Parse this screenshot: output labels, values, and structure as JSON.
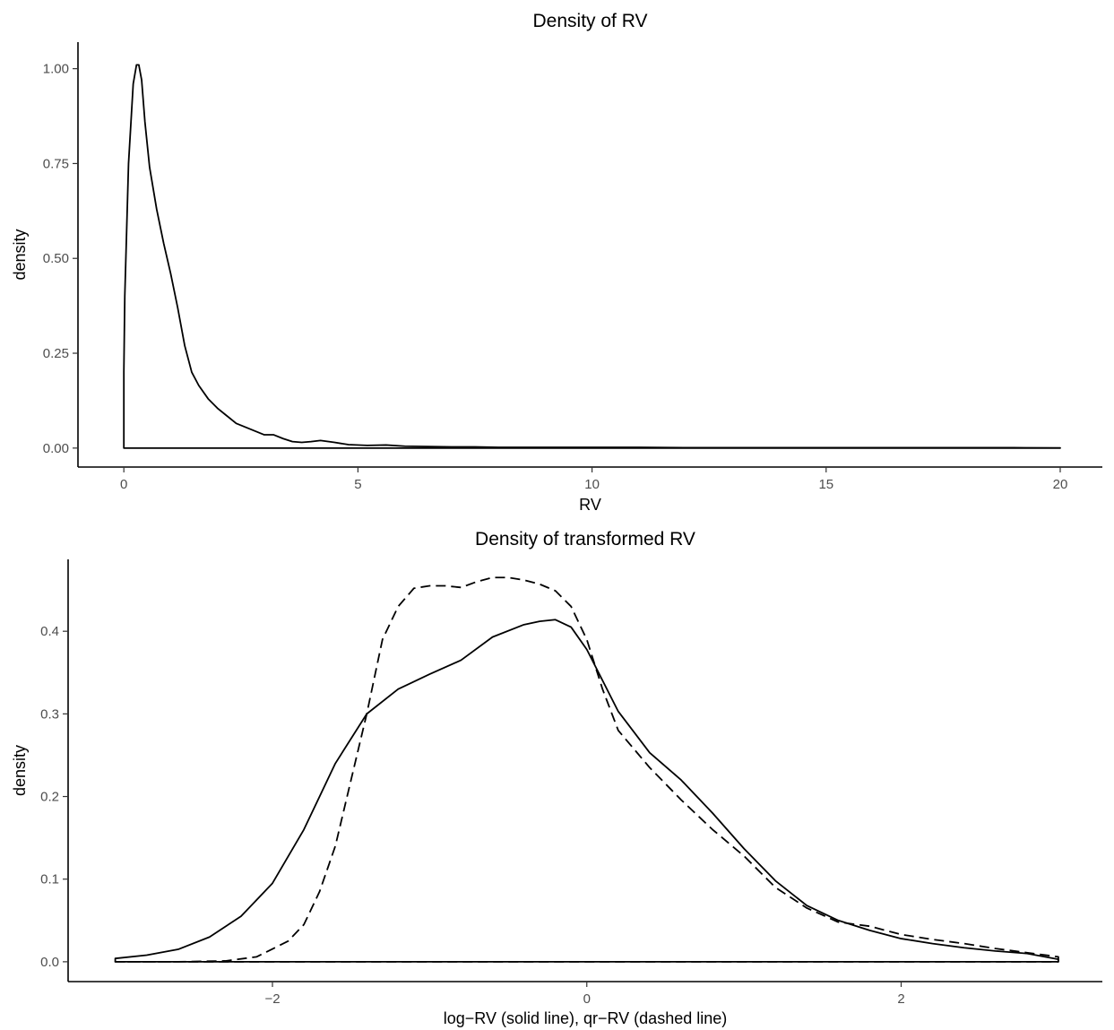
{
  "chart_data": [
    {
      "type": "line",
      "title": "Density of RV",
      "xlabel": "RV",
      "ylabel": "density",
      "xlim": [
        -0.98,
        20.9
      ],
      "ylim": [
        -0.05,
        1.07
      ],
      "xticks": [
        0,
        5,
        10,
        15,
        20
      ],
      "xtick_labels": [
        "0",
        "5",
        "10",
        "15",
        "20"
      ],
      "yticks": [
        0,
        0.25,
        0.5,
        0.75,
        1.0
      ],
      "ytick_labels": [
        "0.00",
        "0.25",
        "0.50",
        "0.75",
        "1.00"
      ],
      "grid": false,
      "series": [
        {
          "style": "solid",
          "closed": true,
          "x": [
            0,
            0.02,
            0.1,
            0.2,
            0.27,
            0.32,
            0.38,
            0.45,
            0.55,
            0.7,
            0.85,
            1.0,
            1.15,
            1.3,
            1.45,
            1.6,
            1.8,
            2.0,
            2.2,
            2.4,
            2.6,
            2.8,
            3.0,
            3.2,
            3.4,
            3.6,
            3.8,
            4.0,
            4.2,
            4.5,
            4.8,
            5.2,
            5.6,
            6.0,
            6.5,
            7.0,
            7.5,
            8.0,
            9.0,
            10.0,
            11.0,
            12.0,
            13.0,
            14.0,
            15.0,
            16.0,
            17.0,
            18.0,
            19.0,
            20.0
          ],
          "y": [
            0.2,
            0.4,
            0.75,
            0.96,
            1.01,
            1.01,
            0.97,
            0.86,
            0.74,
            0.63,
            0.54,
            0.46,
            0.37,
            0.27,
            0.2,
            0.165,
            0.13,
            0.105,
            0.085,
            0.065,
            0.055,
            0.045,
            0.035,
            0.035,
            0.025,
            0.017,
            0.015,
            0.017,
            0.02,
            0.015,
            0.009,
            0.007,
            0.008,
            0.005,
            0.004,
            0.003,
            0.003,
            0.002,
            0.002,
            0.002,
            0.002,
            0.001,
            0.001,
            0.001,
            0.001,
            0.001,
            0.001,
            0.001,
            0.001,
            0.0005
          ]
        }
      ]
    },
    {
      "type": "line",
      "title": "Density of transformed RV",
      "xlabel": "log−RV (solid line), qr−RV (dashed line)",
      "ylabel": "density",
      "xlim": [
        -3.3,
        3.28
      ],
      "ylim": [
        -0.024,
        0.487
      ],
      "xticks": [
        -2,
        0,
        2
      ],
      "xtick_labels": [
        "−2",
        "0",
        "2"
      ],
      "yticks": [
        0,
        0.1,
        0.2,
        0.3,
        0.4
      ],
      "ytick_labels": [
        "0.0",
        "0.1",
        "0.2",
        "0.3",
        "0.4"
      ],
      "grid": false,
      "series": [
        {
          "style": "solid",
          "closed": true,
          "x": [
            -3.0,
            -2.8,
            -2.6,
            -2.4,
            -2.2,
            -2.0,
            -1.8,
            -1.6,
            -1.4,
            -1.2,
            -1.0,
            -0.8,
            -0.6,
            -0.4,
            -0.3,
            -0.2,
            -0.1,
            0.0,
            0.2,
            0.4,
            0.6,
            0.8,
            1.0,
            1.2,
            1.4,
            1.6,
            1.8,
            2.0,
            2.2,
            2.4,
            2.6,
            2.8,
            3.0
          ],
          "y": [
            0.004,
            0.008,
            0.015,
            0.03,
            0.055,
            0.095,
            0.16,
            0.24,
            0.3,
            0.33,
            0.348,
            0.365,
            0.393,
            0.408,
            0.412,
            0.414,
            0.405,
            0.378,
            0.303,
            0.253,
            0.22,
            0.18,
            0.137,
            0.098,
            0.068,
            0.05,
            0.038,
            0.028,
            0.022,
            0.017,
            0.013,
            0.01,
            0.003
          ]
        },
        {
          "style": "dashed",
          "closed": true,
          "x": [
            -3.0,
            -2.6,
            -2.3,
            -2.1,
            -1.9,
            -1.8,
            -1.7,
            -1.6,
            -1.5,
            -1.4,
            -1.3,
            -1.2,
            -1.1,
            -1.0,
            -0.9,
            -0.8,
            -0.7,
            -0.6,
            -0.5,
            -0.4,
            -0.3,
            -0.2,
            -0.1,
            0.0,
            0.1,
            0.2,
            0.4,
            0.6,
            0.8,
            1.0,
            1.2,
            1.4,
            1.6,
            1.8,
            2.0,
            2.2,
            2.4,
            2.6,
            2.8,
            3.0
          ],
          "y": [
            0.0,
            0.0,
            0.001,
            0.006,
            0.025,
            0.045,
            0.085,
            0.14,
            0.22,
            0.3,
            0.39,
            0.43,
            0.452,
            0.455,
            0.455,
            0.453,
            0.46,
            0.465,
            0.465,
            0.462,
            0.457,
            0.449,
            0.43,
            0.39,
            0.33,
            0.28,
            0.235,
            0.196,
            0.16,
            0.128,
            0.09,
            0.065,
            0.048,
            0.043,
            0.033,
            0.027,
            0.022,
            0.016,
            0.011,
            0.006
          ]
        }
      ]
    }
  ]
}
